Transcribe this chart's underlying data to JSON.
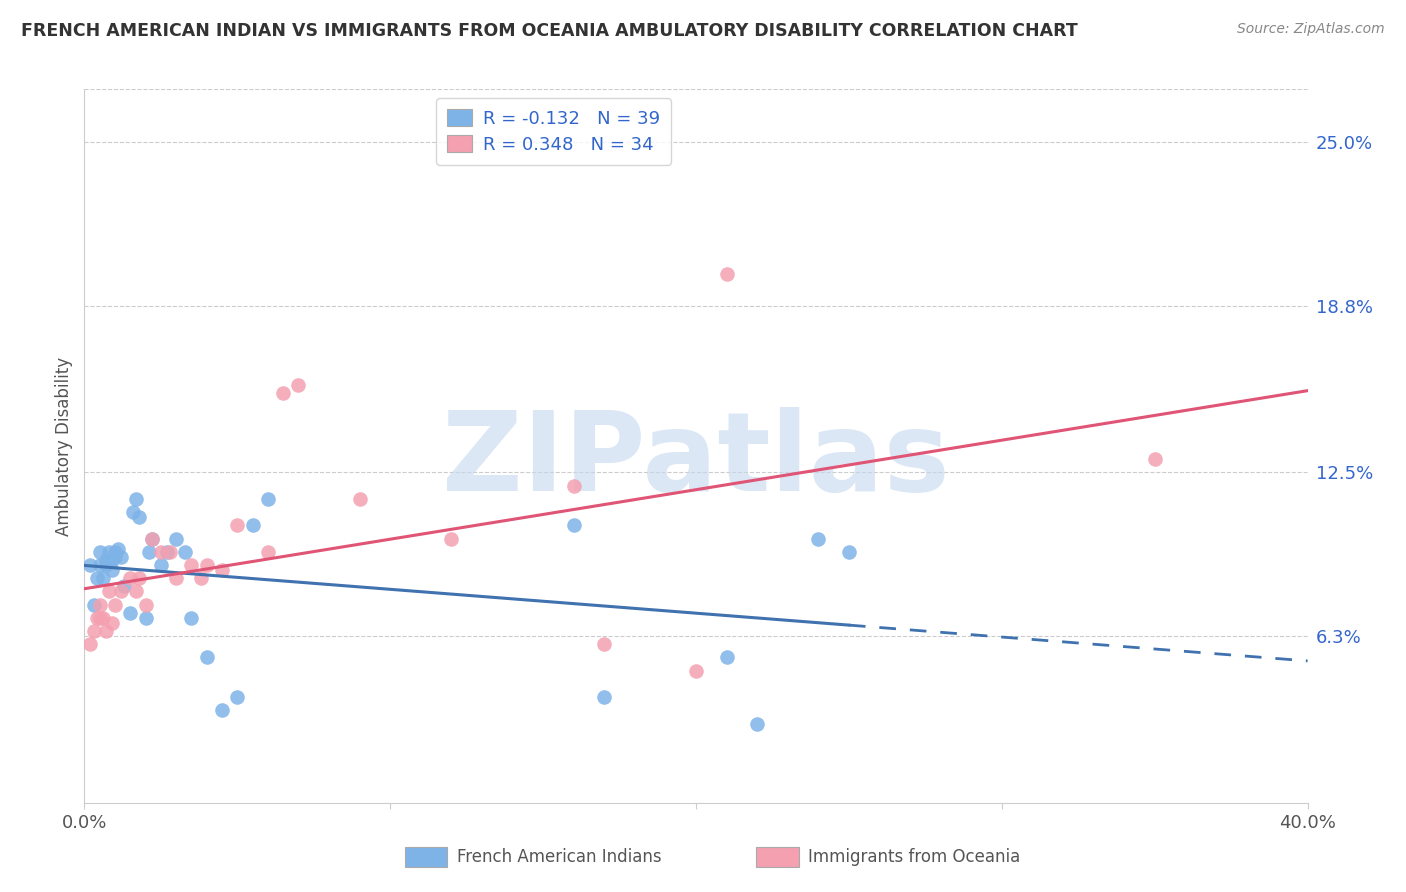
{
  "title": "FRENCH AMERICAN INDIAN VS IMMIGRANTS FROM OCEANIA AMBULATORY DISABILITY CORRELATION CHART",
  "source": "Source: ZipAtlas.com",
  "ylabel": "Ambulatory Disability",
  "xlim": [
    0.0,
    0.4
  ],
  "ylim": [
    0.0,
    0.27
  ],
  "yticks": [
    0.063,
    0.125,
    0.188,
    0.25
  ],
  "ytick_labels": [
    "6.3%",
    "12.5%",
    "18.8%",
    "25.0%"
  ],
  "xticks": [
    0.0,
    0.1,
    0.2,
    0.3,
    0.4
  ],
  "xtick_labels": [
    "0.0%",
    "",
    "",
    "",
    "40.0%"
  ],
  "legend1_label": "French American Indians",
  "legend2_label": "Immigrants from Oceania",
  "R1": -0.132,
  "N1": 39,
  "R2": 0.348,
  "N2": 34,
  "blue_color": "#7EB3E8",
  "pink_color": "#F4A0B0",
  "blue_line_color": "#3F72AF",
  "pink_line_color": "#E05575",
  "watermark": "ZIPatlas",
  "watermark_color": "#C5D8F0",
  "blue_points_x": [
    0.002,
    0.003,
    0.004,
    0.005,
    0.005,
    0.006,
    0.007,
    0.007,
    0.008,
    0.009,
    0.009,
    0.01,
    0.01,
    0.011,
    0.012,
    0.013,
    0.015,
    0.016,
    0.017,
    0.018,
    0.02,
    0.021,
    0.022,
    0.025,
    0.027,
    0.03,
    0.033,
    0.035,
    0.04,
    0.045,
    0.05,
    0.055,
    0.06,
    0.16,
    0.17,
    0.21,
    0.22,
    0.24,
    0.25
  ],
  "blue_points_y": [
    0.09,
    0.075,
    0.085,
    0.09,
    0.095,
    0.085,
    0.09,
    0.092,
    0.095,
    0.088,
    0.092,
    0.093,
    0.095,
    0.096,
    0.093,
    0.082,
    0.072,
    0.11,
    0.115,
    0.108,
    0.07,
    0.095,
    0.1,
    0.09,
    0.095,
    0.1,
    0.095,
    0.07,
    0.055,
    0.035,
    0.04,
    0.105,
    0.115,
    0.105,
    0.04,
    0.055,
    0.03,
    0.1,
    0.095
  ],
  "pink_points_x": [
    0.002,
    0.003,
    0.004,
    0.005,
    0.005,
    0.006,
    0.007,
    0.008,
    0.009,
    0.01,
    0.012,
    0.015,
    0.017,
    0.018,
    0.02,
    0.022,
    0.025,
    0.028,
    0.03,
    0.035,
    0.038,
    0.04,
    0.045,
    0.05,
    0.06,
    0.065,
    0.07,
    0.09,
    0.12,
    0.16,
    0.17,
    0.2,
    0.21,
    0.35
  ],
  "pink_points_y": [
    0.06,
    0.065,
    0.07,
    0.07,
    0.075,
    0.07,
    0.065,
    0.08,
    0.068,
    0.075,
    0.08,
    0.085,
    0.08,
    0.085,
    0.075,
    0.1,
    0.095,
    0.095,
    0.085,
    0.09,
    0.085,
    0.09,
    0.088,
    0.105,
    0.095,
    0.155,
    0.158,
    0.115,
    0.1,
    0.12,
    0.06,
    0.05,
    0.2,
    0.13
  ],
  "background_color": "#FFFFFF",
  "plot_background": "#FFFFFF",
  "grid_color": "#CCCCCC"
}
